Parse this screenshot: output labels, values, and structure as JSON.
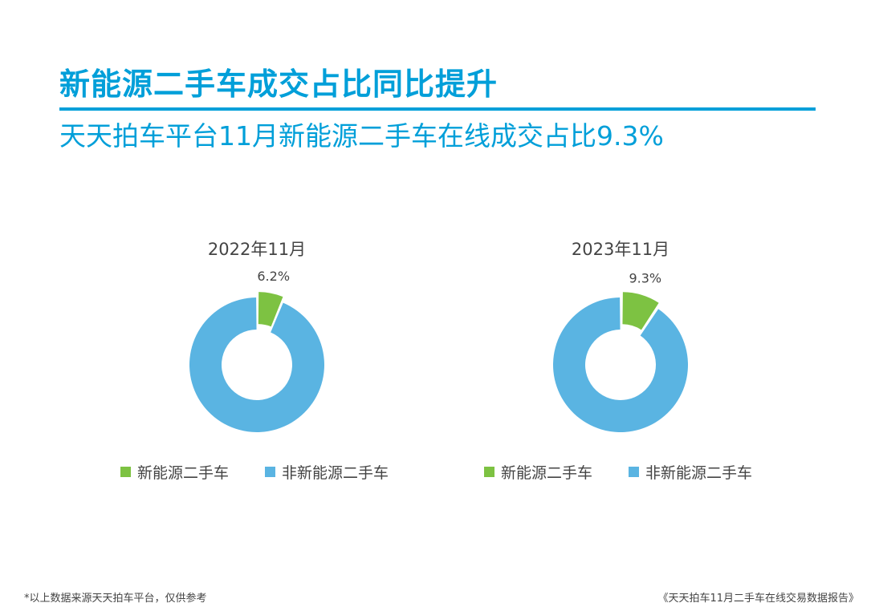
{
  "header": {
    "title": "新能源二手车成交占比同比提升",
    "subtitle": "天天拍车平台11月新能源二手车在线成交占比9.3%"
  },
  "chart_data": [
    {
      "type": "pie",
      "title": "2022年11月",
      "labels": [
        "新能源二手车",
        "非新能源二手车"
      ],
      "values": [
        6.2,
        93.8
      ],
      "data_labels": [
        "6.2%",
        ""
      ],
      "colors": [
        "#7dc242",
        "#5ab4e2"
      ],
      "legend": "bottom"
    },
    {
      "type": "pie",
      "title": "2023年11月",
      "labels": [
        "新能源二手车",
        "非新能源二手车"
      ],
      "values": [
        9.3,
        90.7
      ],
      "data_labels": [
        "9.3%",
        ""
      ],
      "colors": [
        "#7dc242",
        "#5ab4e2"
      ],
      "legend": "bottom"
    }
  ],
  "footer": {
    "note": "*以上数据来源天天拍车平台，仅供参考",
    "source": "《天天拍车11月二手车在线交易数据报告》"
  }
}
